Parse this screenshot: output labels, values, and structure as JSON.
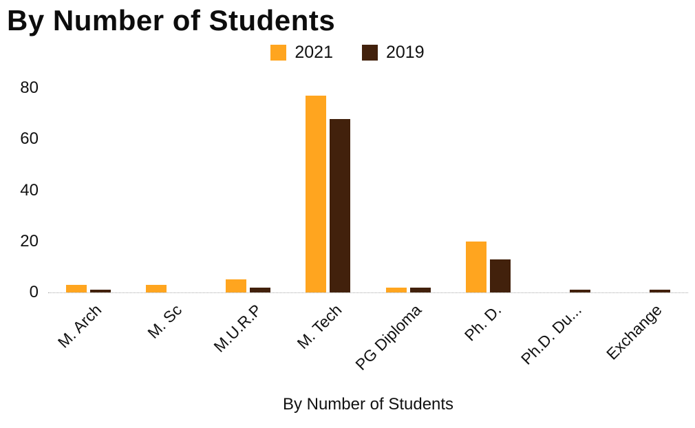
{
  "chart_data": {
    "type": "bar",
    "title": "By Number of Students",
    "xlabel": "By Number of Students",
    "ylabel": "",
    "categories": [
      "M. Arch",
      "M. Sc",
      "M.U.R.P",
      "M. Tech",
      "PG Diploma",
      "Ph. D.",
      "Ph.D. Du...",
      "Exchange"
    ],
    "series": [
      {
        "name": "2021",
        "color": "#FFA51F",
        "values": [
          3,
          3,
          5,
          77,
          2,
          20,
          0,
          0
        ]
      },
      {
        "name": "2019",
        "color": "#42210C",
        "values": [
          1,
          0,
          2,
          68,
          2,
          13,
          1,
          1
        ]
      }
    ],
    "yticks": [
      0,
      20,
      40,
      60,
      80
    ],
    "ylim": [
      0,
      80
    ],
    "grid": false,
    "legend_position": "top-center",
    "colors": {
      "text": "#111111",
      "axis_line": "#a6a6a6",
      "background": "#ffffff"
    }
  }
}
